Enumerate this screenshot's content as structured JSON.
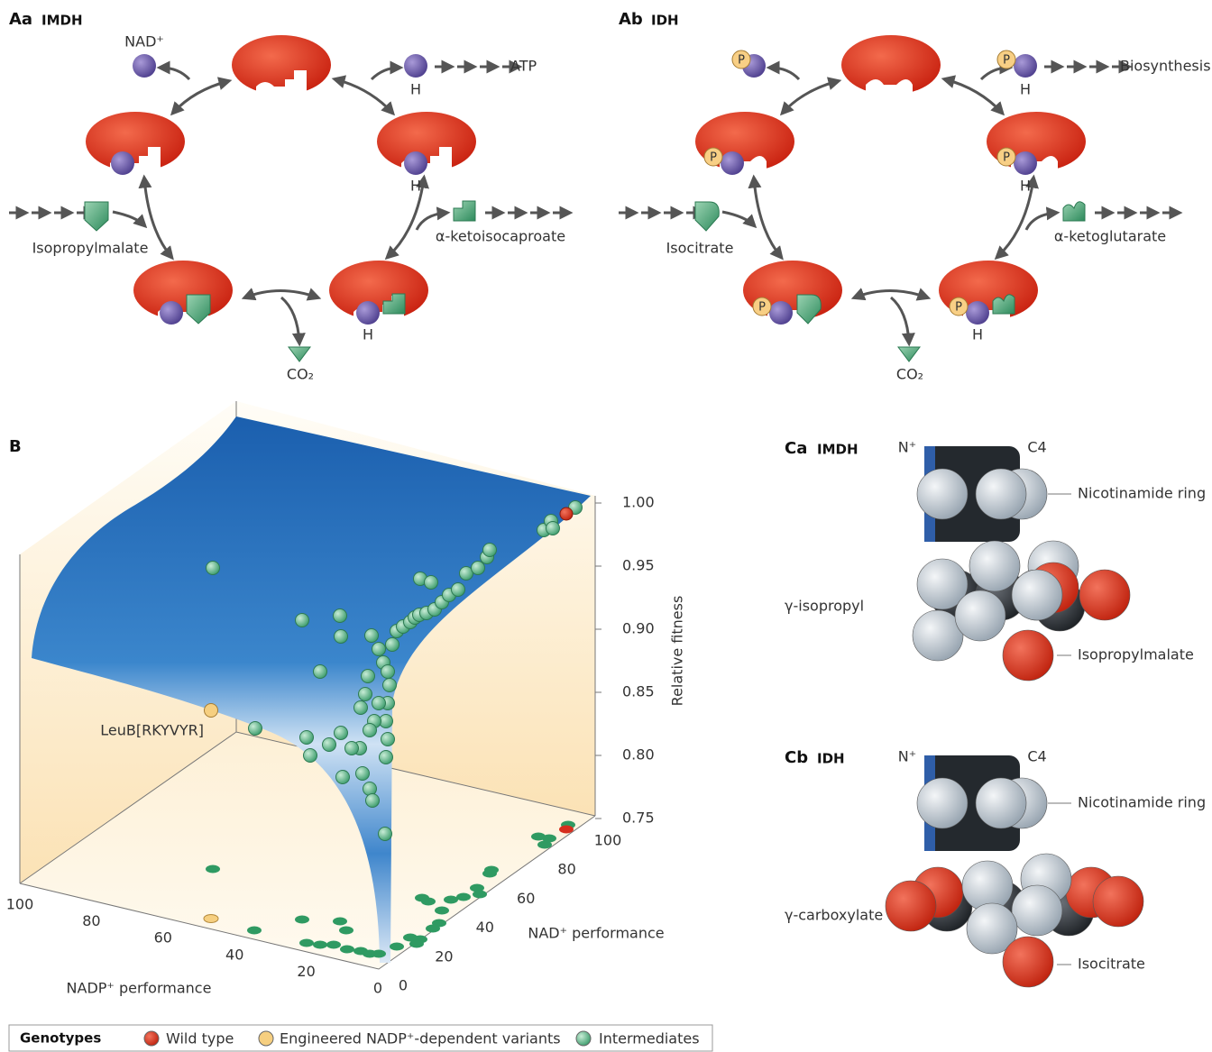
{
  "panels_a": [
    {
      "label": "Aa",
      "title": "IMDH",
      "cofactor": "NAD⁺",
      "output": "ATP",
      "hydride": [
        "H",
        "H",
        "H"
      ],
      "substrate": "Isopropylmalate",
      "product": "α-ketoisocaproate",
      "gas": "CO₂"
    },
    {
      "label": "Ab",
      "title": "IDH",
      "phosphate": [
        "P",
        "P",
        "P",
        "P",
        "P",
        "P"
      ],
      "output": "Biosynthesis",
      "hydride": [
        "H",
        "H",
        "H"
      ],
      "substrate": "Isocitrate",
      "product": "α-ketoglutarate",
      "gas": "CO₂"
    }
  ],
  "landscape": {
    "label": "B",
    "z_axis": "Relative fitness",
    "z_ticks": [
      "1.00",
      "0.95",
      "0.90",
      "0.85",
      "0.80",
      "0.75"
    ],
    "x_axis": "NADP⁺ performance",
    "x_ticks": [
      "100",
      "80",
      "60",
      "40",
      "20",
      "0"
    ],
    "y_axis": "NAD⁺ performance",
    "y_ticks": [
      "0",
      "20",
      "40",
      "60",
      "80",
      "100"
    ],
    "annotation": "LeuB[RKYVYR]"
  },
  "panels_c": [
    {
      "label": "Ca",
      "title": "IMDH",
      "n_label": "N⁺",
      "c_label": "C4",
      "ring": "Nicotinamide ring",
      "group": "γ-isopropyl",
      "substrate": "Isopropylmalate"
    },
    {
      "label": "Cb",
      "title": "IDH",
      "n_label": "N⁺",
      "c_label": "C4",
      "ring": "Nicotinamide ring",
      "group": "γ-carboxylate",
      "substrate": "Isocitrate"
    }
  ],
  "legend": {
    "title": "Genotypes",
    "items": [
      "Wild type",
      "Engineered NADP⁺-dependent variants",
      "Intermediates"
    ]
  }
}
